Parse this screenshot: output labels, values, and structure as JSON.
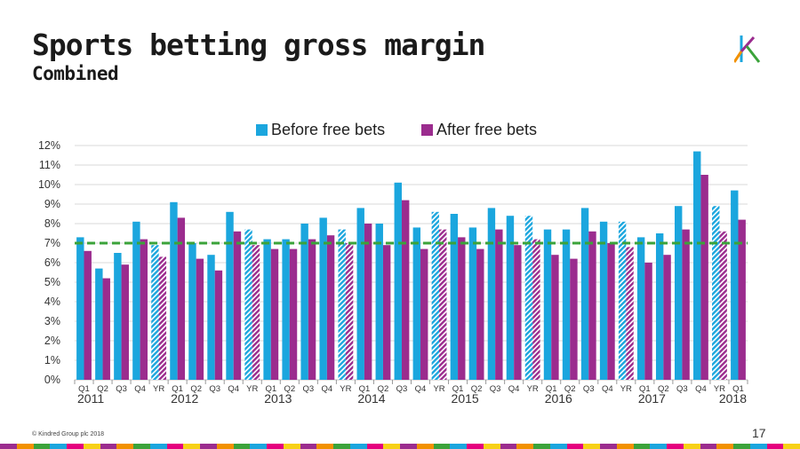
{
  "slide": {
    "title": "Sports betting gross margin",
    "subtitle": "Combined",
    "footer": "© Kindred Group plc 2018",
    "page_number": "17"
  },
  "colors": {
    "before": "#1BA6DE",
    "after": "#9B2C8E",
    "target_line": "#3BA33A",
    "grid": "#d9d9d9"
  },
  "chart_data": {
    "type": "bar",
    "title": "",
    "xlabel": "",
    "ylabel": "",
    "ylim": [
      0,
      12
    ],
    "y_ticks": [
      "0%",
      "1%",
      "2%",
      "3%",
      "4%",
      "5%",
      "6%",
      "7%",
      "8%",
      "9%",
      "10%",
      "11%",
      "12%"
    ],
    "legend_position": "top-center",
    "grid": true,
    "reference_line": 7.0,
    "categories": [
      "Q1",
      "Q2",
      "Q3",
      "Q4",
      "YR",
      "Q1",
      "Q2",
      "Q3",
      "Q4",
      "YR",
      "Q1",
      "Q2",
      "Q3",
      "Q4",
      "YR",
      "Q1",
      "Q2",
      "Q3",
      "Q4",
      "YR",
      "Q1",
      "Q2",
      "Q3",
      "Q4",
      "YR",
      "Q1",
      "Q2",
      "Q3",
      "Q4",
      "YR",
      "Q1",
      "Q2",
      "Q3",
      "Q4",
      "YR",
      "Q1"
    ],
    "years": [
      "2011",
      "2012",
      "2013",
      "2014",
      "2015",
      "2016",
      "2017",
      "2018"
    ],
    "series": [
      {
        "name": "Before free bets",
        "values": [
          7.3,
          5.7,
          6.5,
          8.1,
          6.9,
          9.1,
          7.0,
          6.4,
          8.6,
          7.7,
          7.2,
          7.2,
          8.0,
          8.3,
          7.7,
          8.8,
          8.0,
          10.1,
          7.8,
          8.6,
          8.5,
          7.8,
          8.8,
          8.4,
          8.4,
          7.7,
          7.7,
          8.8,
          8.1,
          8.1,
          7.3,
          7.5,
          8.9,
          11.7,
          8.9,
          9.7
        ]
      },
      {
        "name": "After free bets",
        "values": [
          6.6,
          5.2,
          5.9,
          7.2,
          6.3,
          8.3,
          6.2,
          5.6,
          7.6,
          6.9,
          6.7,
          6.7,
          7.2,
          7.4,
          7.0,
          8.0,
          6.9,
          9.2,
          6.7,
          7.7,
          7.3,
          6.7,
          7.7,
          6.9,
          7.2,
          6.4,
          6.2,
          7.6,
          7.0,
          6.8,
          6.0,
          6.4,
          7.7,
          10.5,
          7.6,
          8.2
        ]
      }
    ]
  }
}
